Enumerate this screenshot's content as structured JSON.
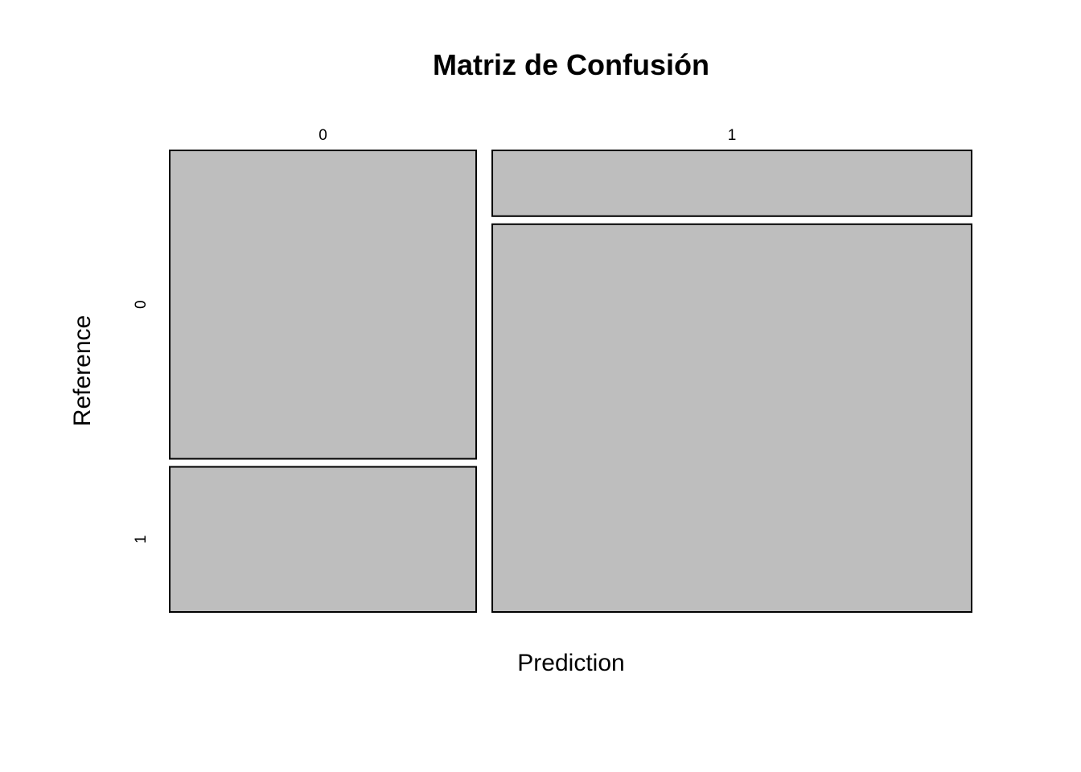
{
  "chart_data": {
    "type": "mosaic",
    "title": "Matriz de Confusión",
    "xlabel": "Prediction",
    "ylabel": "Reference",
    "x_categories": [
      "0",
      "1"
    ],
    "y_categories": [
      "0",
      "1"
    ],
    "column_proportions": [
      0.39,
      0.61
    ],
    "cells": [
      {
        "prediction": "0",
        "reference": "0",
        "proportion_within_column": 0.68
      },
      {
        "prediction": "0",
        "reference": "1",
        "proportion_within_column": 0.32
      },
      {
        "prediction": "1",
        "reference": "0",
        "proportion_within_column": 0.145
      },
      {
        "prediction": "1",
        "reference": "1",
        "proportion_within_column": 0.855
      }
    ],
    "tile_color": "#bebebe",
    "border_color": "#000000"
  }
}
